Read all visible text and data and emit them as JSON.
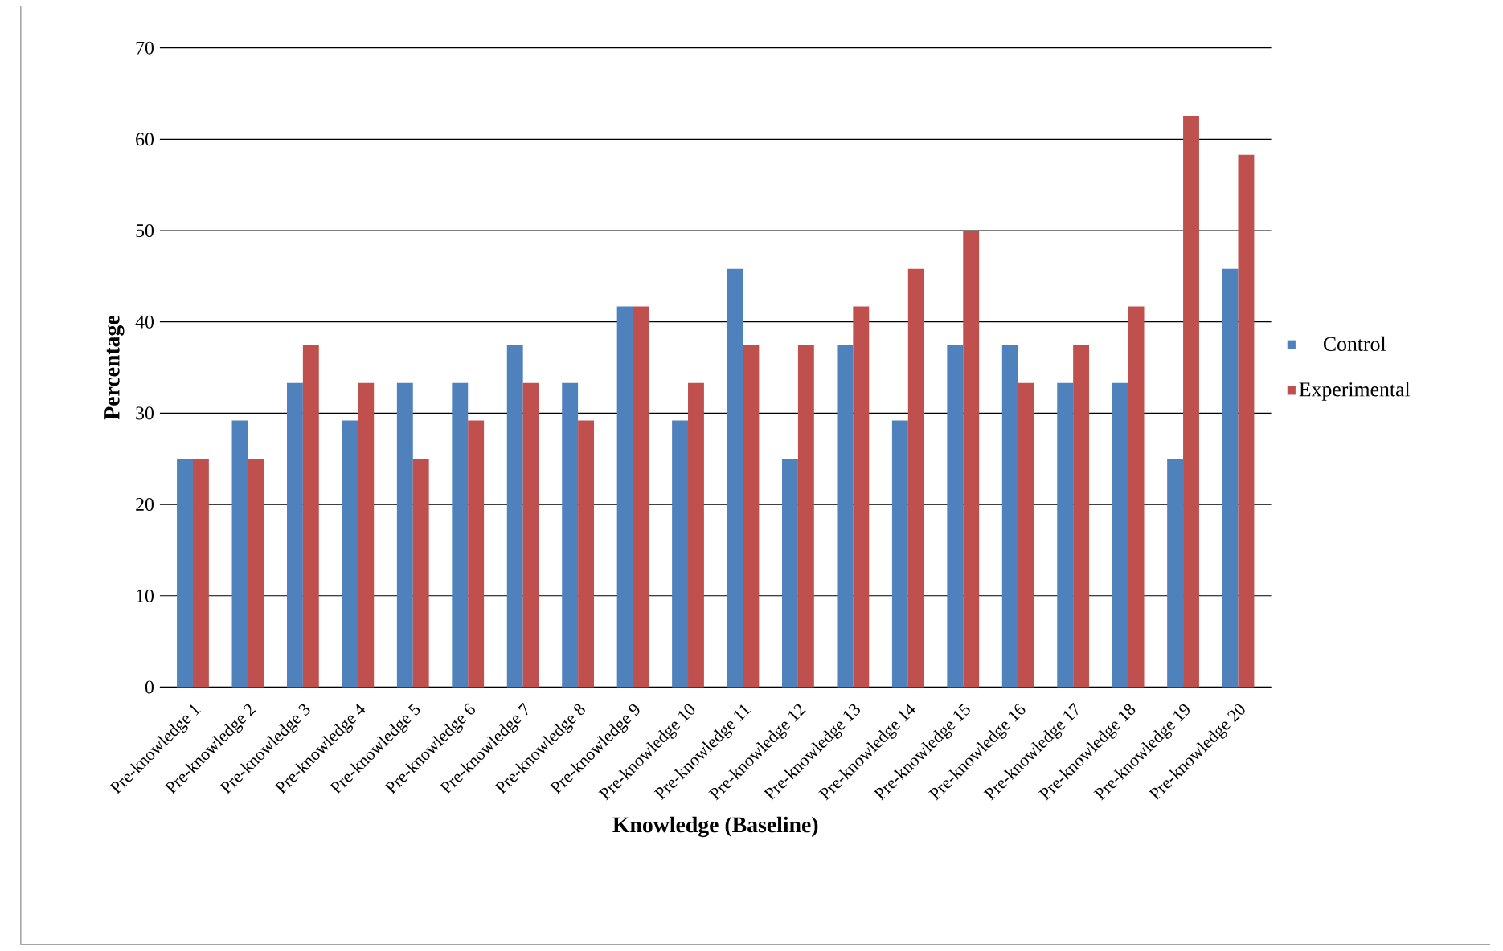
{
  "chart_data": {
    "type": "bar",
    "xlabel": "Knowledge (Baseline)",
    "ylabel": "Percentage",
    "categories": [
      "Pre-knowledge 1",
      "Pre-knowledge 2",
      "Pre-knowledge 3",
      "Pre-knowledge 4",
      "Pre-knowledge 5",
      "Pre-knowledge 6",
      "Pre-knowledge 7",
      "Pre-knowledge 8",
      "Pre-knowledge 9",
      "Pre-knowledge 10",
      "Pre-knowledge 11",
      "Pre-knowledge 12",
      "Pre-knowledge 13",
      "Pre-knowledge 14",
      "Pre-knowledge 15",
      "Pre-knowledge 16",
      "Pre-knowledge 17",
      "Pre-knowledge 18",
      "Pre-knowledge 19",
      "Pre-knowledge 20"
    ],
    "series": [
      {
        "name": "Control",
        "color": "#4f81bd",
        "values": [
          25,
          29.2,
          33.3,
          29.2,
          33.3,
          33.3,
          37.5,
          33.3,
          41.7,
          29.2,
          45.8,
          25,
          37.5,
          29.2,
          37.5,
          37.5,
          33.3,
          33.3,
          25,
          45.8
        ]
      },
      {
        "name": "Experimental",
        "color": "#c0504d",
        "values": [
          25,
          25,
          37.5,
          33.3,
          25,
          29.2,
          33.3,
          29.2,
          41.7,
          33.3,
          37.5,
          37.5,
          41.7,
          45.8,
          50,
          33.3,
          37.5,
          41.7,
          62.5,
          58.3
        ]
      }
    ],
    "ylim": [
      0,
      70
    ],
    "yticks": [
      0,
      10,
      20,
      30,
      40,
      50,
      60,
      70
    ],
    "grid": "y",
    "legend": "right"
  }
}
